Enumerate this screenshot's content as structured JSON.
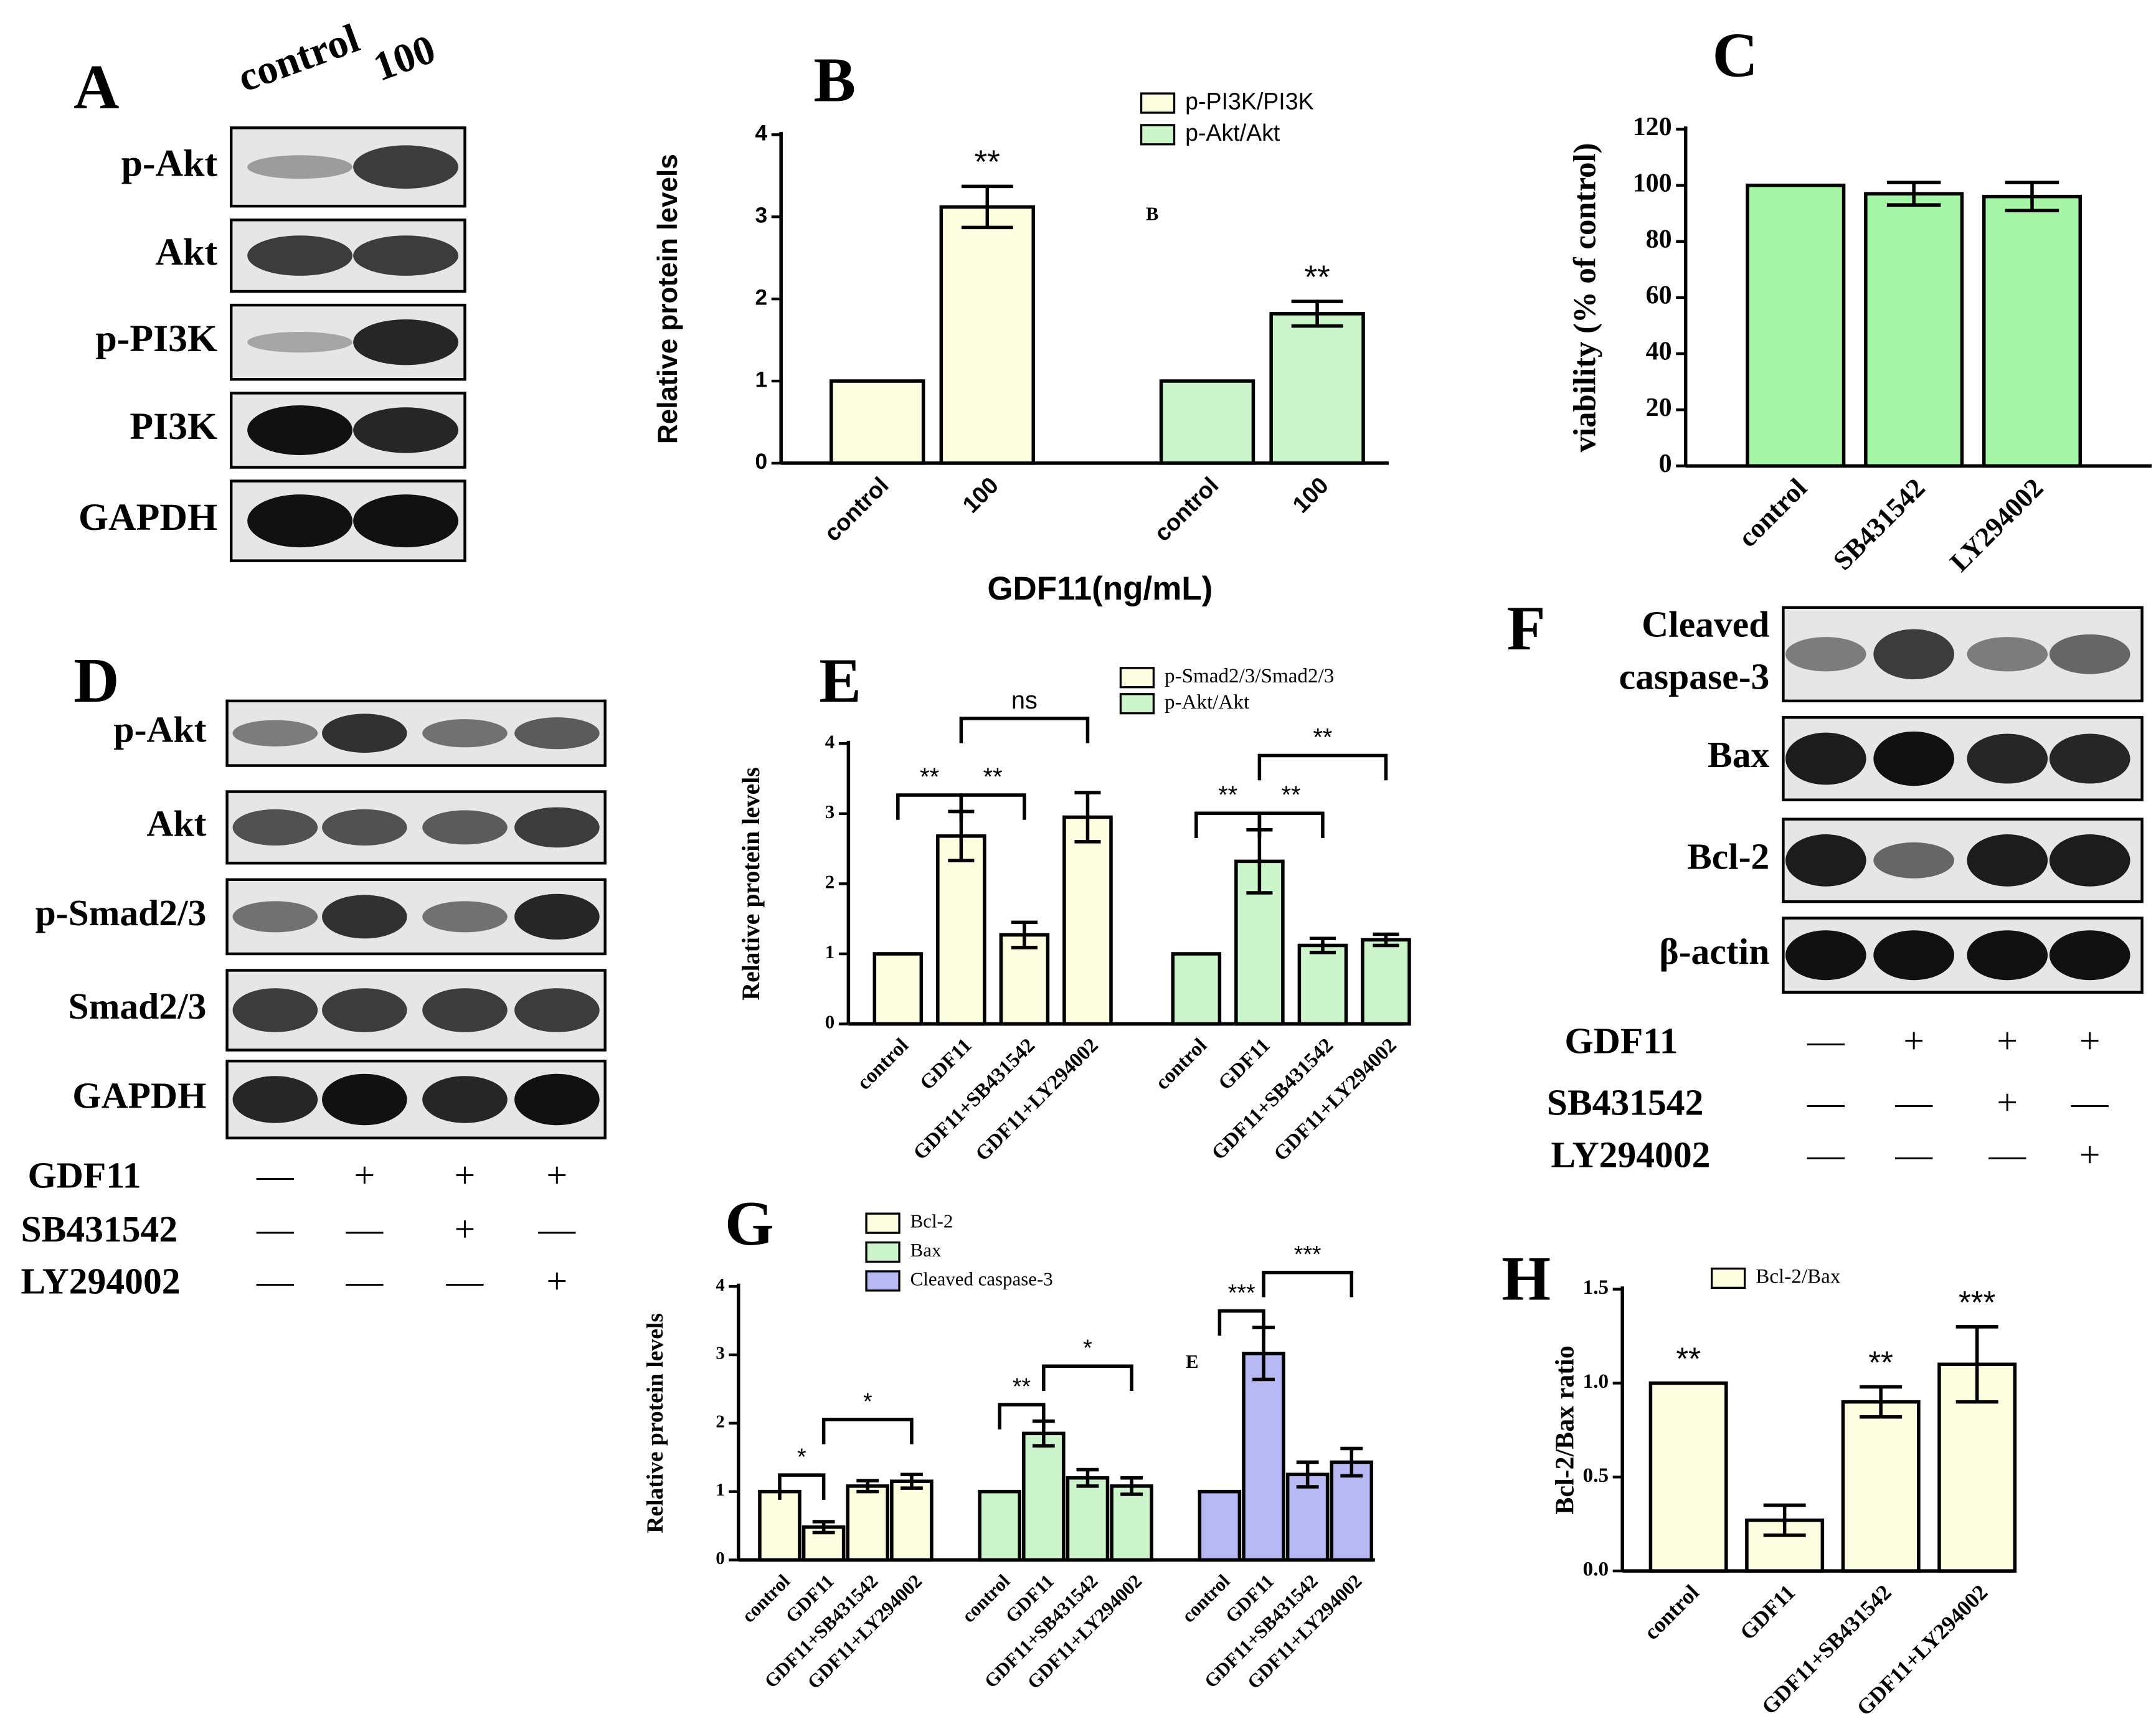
{
  "chart_data": [
    {
      "type": "bar",
      "panel": "B",
      "ylabel": "Relative protein levels",
      "xlabel": "GDF11(ng/mL)",
      "categories": [
        "control",
        "100"
      ],
      "ylim": [
        0,
        4
      ],
      "yticks": [
        0,
        1,
        2,
        3,
        4
      ],
      "series": [
        {
          "name": "p-PI3K/PI3K",
          "color": "#fdfde0",
          "values": [
            1,
            3.12
          ],
          "errors": [
            0,
            0.25
          ],
          "sig": [
            null,
            "**"
          ]
        },
        {
          "name": "p-Akt/Akt",
          "color": "#ccf5cc",
          "values": [
            1,
            1.82
          ],
          "errors": [
            0,
            0.15
          ],
          "sig": [
            null,
            "**"
          ]
        }
      ],
      "brackets": [],
      "annotations": [
        "B"
      ]
    },
    {
      "type": "bar",
      "panel": "C",
      "ylabel": "viability (% of control)",
      "categories": [
        "control",
        "SB431542",
        "LY294002"
      ],
      "ylim": [
        0,
        120
      ],
      "yticks": [
        0,
        20,
        40,
        60,
        80,
        100,
        120
      ],
      "series": [
        {
          "color": "#a6f5a6",
          "values": [
            100,
            97,
            96
          ],
          "errors": [
            0,
            4,
            5
          ],
          "sig": [
            null,
            null,
            null
          ]
        }
      ],
      "brackets": [],
      "annotations": []
    },
    {
      "type": "bar",
      "panel": "E",
      "ylabel": "Relative protein levels",
      "categories": [
        "control",
        "GDF11",
        "GDF11+SB431542",
        "GDF11+LY294002"
      ],
      "ylim": [
        0,
        4
      ],
      "yticks": [
        0,
        1,
        2,
        3,
        4
      ],
      "series": [
        {
          "name": "p-Smad2/3/Smad2/3",
          "color": "#fdfde0",
          "values": [
            1,
            2.68,
            1.27,
            2.95
          ],
          "errors": [
            0,
            0.35,
            0.18,
            0.35
          ],
          "sig": [
            null,
            null,
            null,
            null
          ]
        },
        {
          "name": "p-Akt/Akt",
          "color": "#ccf5cc",
          "values": [
            1,
            2.32,
            1.12,
            1.2
          ],
          "errors": [
            0,
            0.45,
            0.1,
            0.08
          ],
          "sig": [
            null,
            null,
            null,
            null
          ]
        }
      ],
      "brackets": [
        {
          "series": 0,
          "from": 0,
          "to": 1,
          "label": "**"
        },
        {
          "series": 0,
          "from": 1,
          "to": 2,
          "label": "**"
        },
        {
          "series": 0,
          "from": 1,
          "to": 3,
          "label": "ns"
        },
        {
          "series": 1,
          "from": 0,
          "to": 1,
          "label": "**"
        },
        {
          "series": 1,
          "from": 1,
          "to": 2,
          "label": "**"
        },
        {
          "series": 1,
          "from": 1,
          "to": 3,
          "label": "**"
        }
      ],
      "annotations": []
    },
    {
      "type": "bar",
      "panel": "G",
      "ylabel": "Relative protein levels",
      "categories": [
        "control",
        "GDF11",
        "GDF11+SB431542",
        "GDF11+LY294002"
      ],
      "ylim": [
        0,
        4
      ],
      "yticks": [
        0,
        1,
        2,
        3,
        4
      ],
      "series": [
        {
          "name": "Bcl-2",
          "color": "#fdfde0",
          "values": [
            1,
            0.48,
            1.08,
            1.15
          ],
          "errors": [
            0,
            0.08,
            0.08,
            0.1
          ],
          "sig": [
            null,
            null,
            null,
            null
          ]
        },
        {
          "name": "Bax",
          "color": "#ccf5cc",
          "values": [
            1,
            1.85,
            1.2,
            1.08
          ],
          "errors": [
            0,
            0.18,
            0.12,
            0.12
          ],
          "sig": [
            null,
            null,
            null,
            null
          ]
        },
        {
          "name": "Cleaved caspase-3",
          "color": "#b8b8f5",
          "values": [
            1,
            3.02,
            1.25,
            1.43
          ],
          "errors": [
            0,
            0.38,
            0.18,
            0.2
          ],
          "sig": [
            null,
            null,
            null,
            null
          ]
        }
      ],
      "brackets": [
        {
          "series": 0,
          "from": 0,
          "to": 1,
          "label": "*"
        },
        {
          "series": 0,
          "from": 1,
          "to": 3,
          "label": "*"
        },
        {
          "series": 1,
          "from": 0,
          "to": 1,
          "label": "**"
        },
        {
          "series": 1,
          "from": 1,
          "to": 3,
          "label": "*"
        },
        {
          "series": 2,
          "from": 0,
          "to": 1,
          "label": "***"
        },
        {
          "series": 2,
          "from": 1,
          "to": 3,
          "label": "***"
        }
      ],
      "annotations": [
        "E"
      ]
    },
    {
      "type": "bar",
      "panel": "H",
      "ylabel": "Bcl-2/Bax ratio",
      "categories": [
        "control",
        "GDF11",
        "GDF11+SB431542",
        "GDF11+LY294002"
      ],
      "ylim": [
        0,
        1.5
      ],
      "yticks": [
        {
          "value": 0,
          "label": "0.0"
        },
        {
          "value": 0.5,
          "label": "0.5"
        },
        {
          "value": 1,
          "label": "1.0"
        },
        {
          "value": 1.5,
          "label": "1.5"
        }
      ],
      "series": [
        {
          "name": "Bcl-2/Bax",
          "color": "#fdfde0",
          "values": [
            1,
            0.27,
            0.9,
            1.1
          ],
          "errors": [
            0,
            0.08,
            0.08,
            0.2
          ],
          "sig": [
            "**",
            null,
            "**",
            "***"
          ]
        }
      ],
      "brackets": [],
      "annotations": []
    }
  ],
  "blots": [
    {
      "panel": "A",
      "lanes": [
        "control",
        "100"
      ],
      "rows": [
        [
          "p-Akt"
        ],
        [
          "Akt"
        ],
        [
          "p-PI3K"
        ],
        [
          "PI3K"
        ],
        [
          "GAPDH"
        ]
      ],
      "treatments": []
    },
    {
      "panel": "D",
      "lanes": [],
      "rows": [
        [
          "p-Akt"
        ],
        [
          "Akt"
        ],
        [
          "p-Smad2/3"
        ],
        [
          "Smad2/3"
        ],
        [
          "GAPDH"
        ]
      ],
      "treatments": [
        {
          "name": "GDF11",
          "marks": [
            "—",
            "+",
            "+",
            "+"
          ]
        },
        {
          "name": "SB431542",
          "marks": [
            "—",
            "—",
            "+",
            "—"
          ]
        },
        {
          "name": "LY294002",
          "marks": [
            "—",
            "—",
            "—",
            "+"
          ]
        }
      ]
    },
    {
      "panel": "F",
      "lanes": [],
      "rows": [
        [
          "Cleaved",
          "caspase-3"
        ],
        [
          "Bax"
        ],
        [
          "Bcl-2"
        ],
        [
          "β-actin"
        ]
      ],
      "treatments": [
        {
          "name": "GDF11",
          "marks": [
            "—",
            "+",
            "+",
            "+"
          ]
        },
        {
          "name": "SB431542",
          "marks": [
            "—",
            "—",
            "+",
            "—"
          ]
        },
        {
          "name": "LY294002",
          "marks": [
            "—",
            "—",
            "—",
            "+"
          ]
        }
      ]
    }
  ]
}
